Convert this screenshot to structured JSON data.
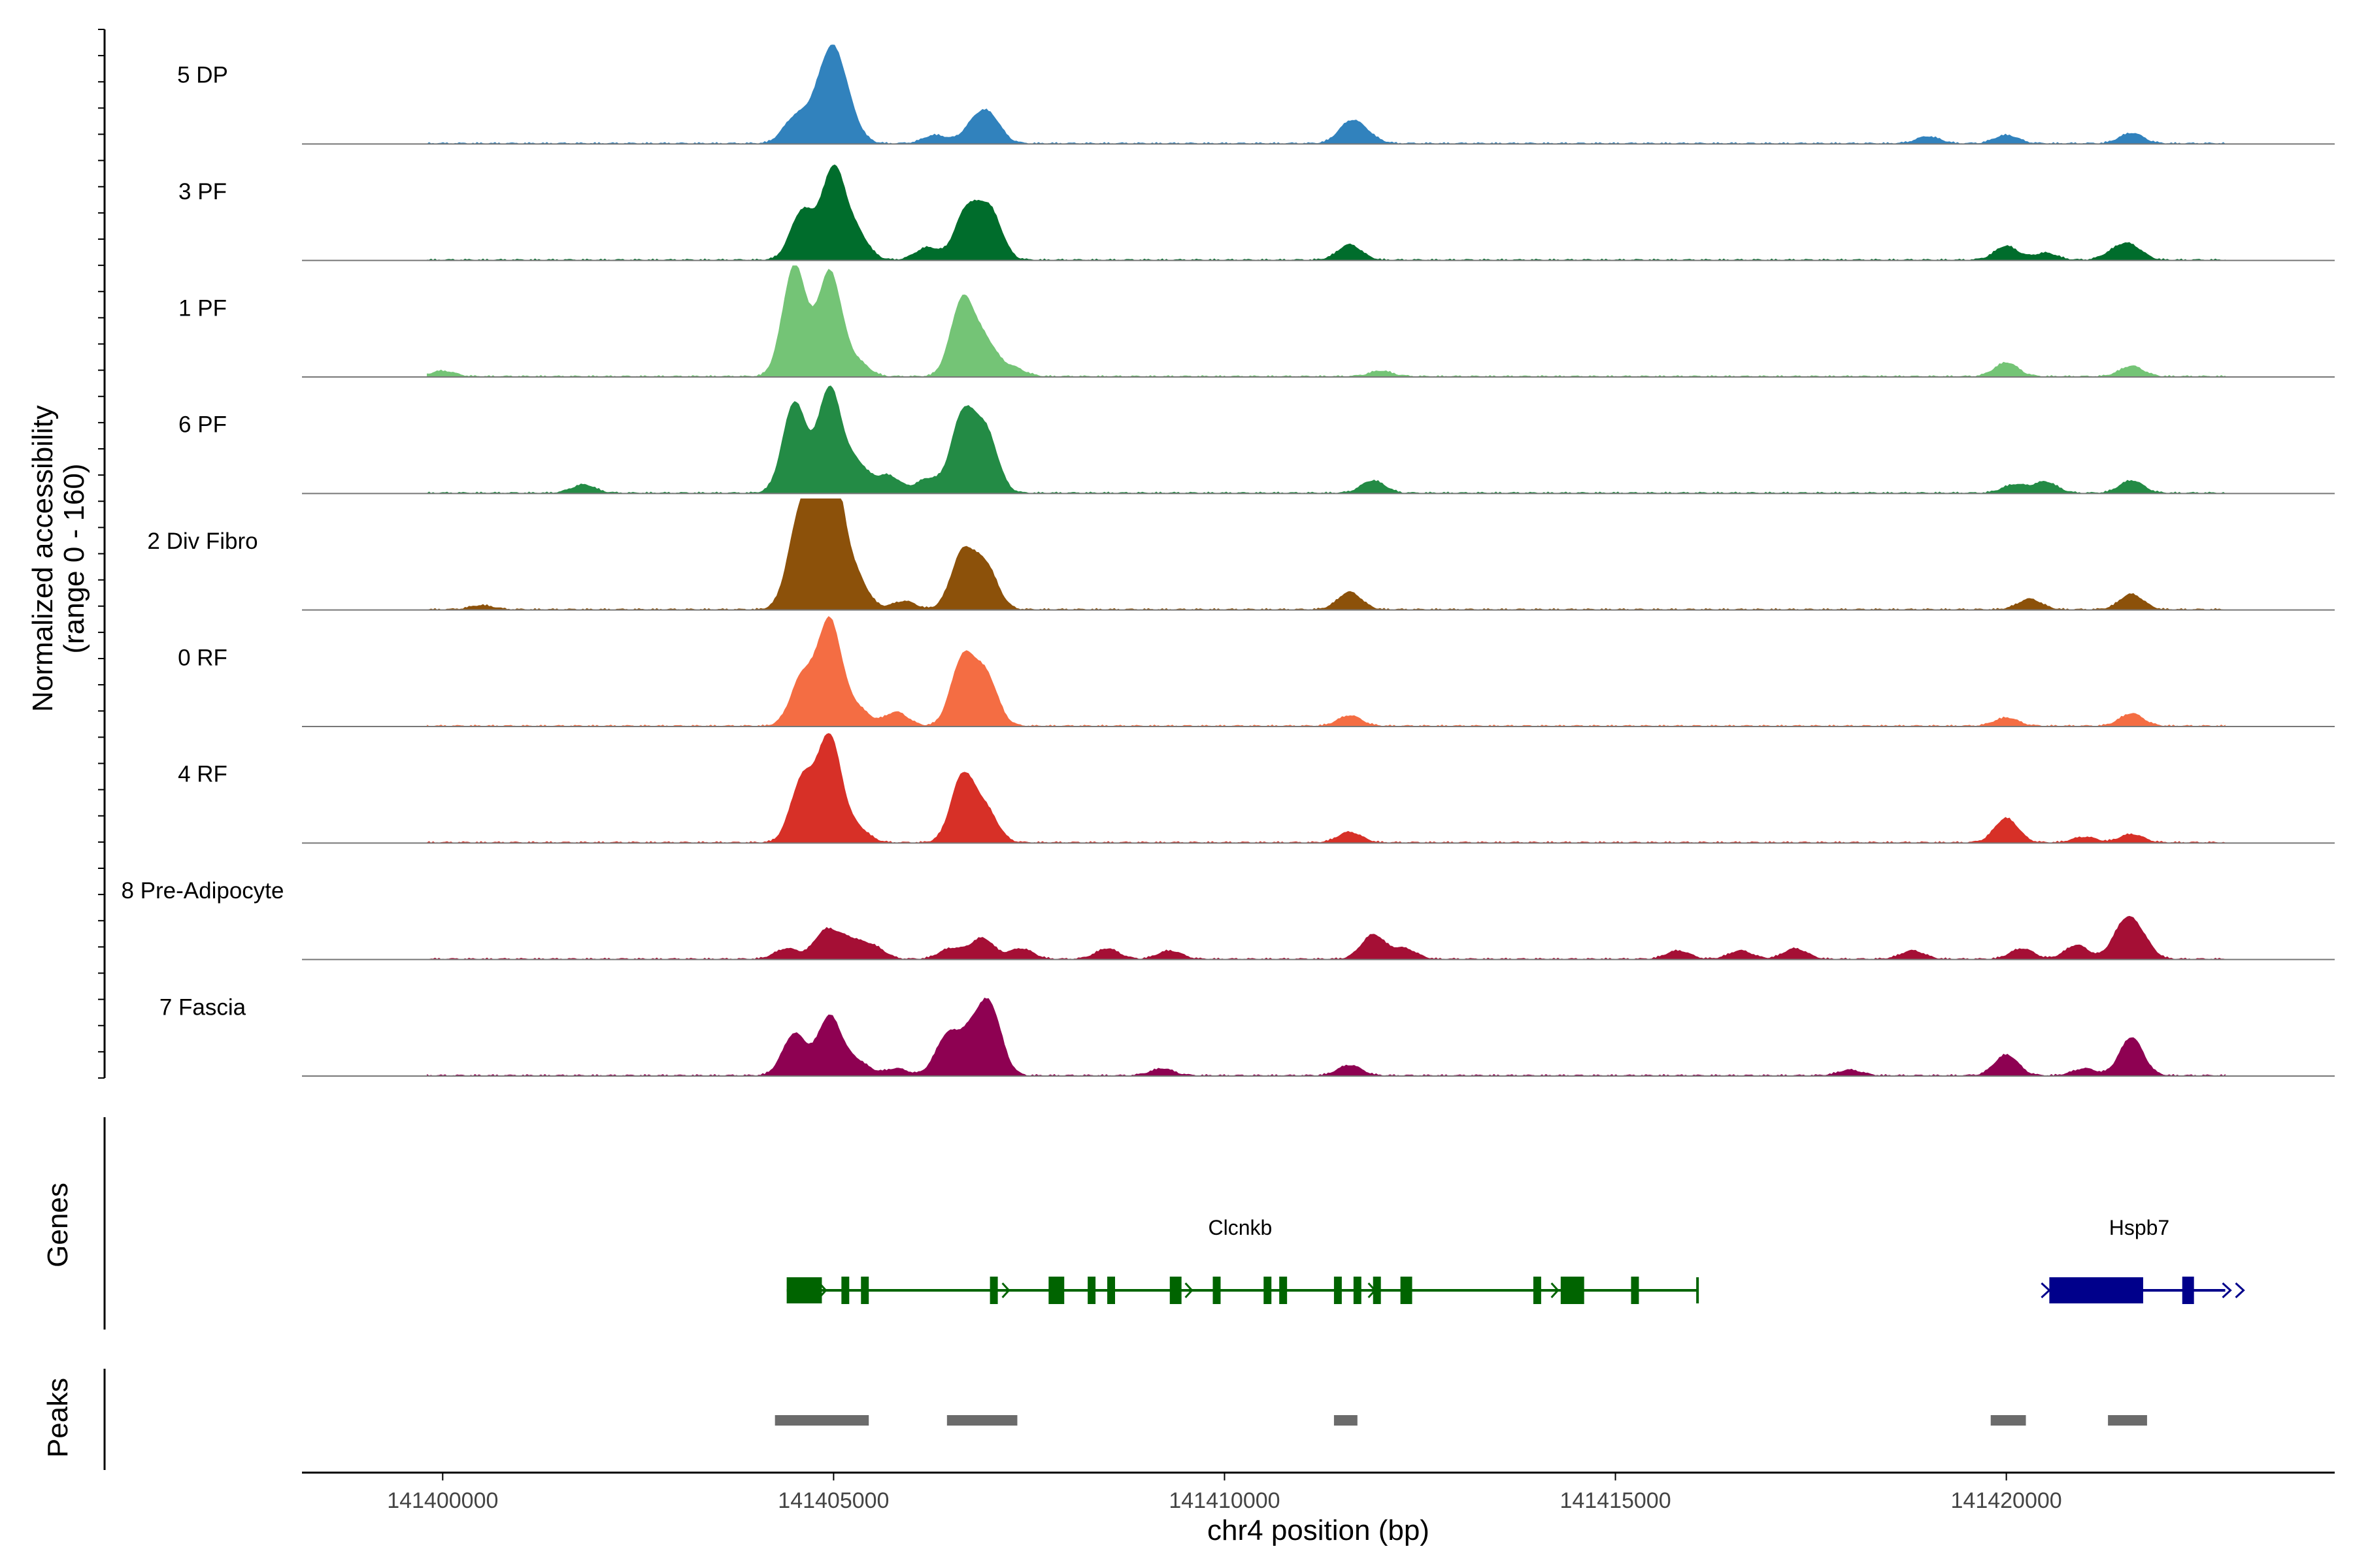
{
  "chart_data": {
    "type": "area",
    "title": "",
    "ylabel": "Normalized accessibility",
    "ylabel_range": "(range 0 - 160)",
    "xlabel": "chr4 position (bp)",
    "xlim": [
      141398200,
      141424200
    ],
    "ylim": [
      0,
      160
    ],
    "xticks": [
      141400000,
      141405000,
      141410000,
      141415000,
      141420000
    ],
    "tracks": [
      {
        "name": "5 DP",
        "color": "#3182bd",
        "peaks": [
          [
            141404800,
            45
          ],
          [
            141405000,
            110
          ],
          [
            141404500,
            35
          ],
          [
            141405200,
            30
          ],
          [
            141406800,
            25
          ],
          [
            141407000,
            35
          ],
          [
            141406300,
            12
          ],
          [
            141411600,
            28
          ],
          [
            141411800,
            12
          ],
          [
            141420000,
            12
          ],
          [
            141421600,
            15
          ],
          [
            141419000,
            10
          ]
        ]
      },
      {
        "name": "3 PF",
        "color": "#006d2c",
        "peaks": [
          [
            141404600,
            70
          ],
          [
            141405000,
            130
          ],
          [
            141405300,
            35
          ],
          [
            141406700,
            70
          ],
          [
            141407000,
            70
          ],
          [
            141406200,
            18
          ],
          [
            141411600,
            22
          ],
          [
            141420000,
            20
          ],
          [
            141421600,
            18
          ],
          [
            141420500,
            10
          ],
          [
            141421400,
            12
          ]
        ]
      },
      {
        "name": "1 PF",
        "color": "#74c476",
        "peaks": [
          [
            141404500,
            160
          ],
          [
            141404950,
            150
          ],
          [
            141405300,
            20
          ],
          [
            141406650,
            110
          ],
          [
            141406950,
            45
          ],
          [
            141407300,
            12
          ],
          [
            141420000,
            20
          ],
          [
            141421600,
            15
          ],
          [
            141400000,
            8
          ],
          [
            141412000,
            8
          ]
        ]
      },
      {
        "name": "6 PF",
        "color": "#238b45",
        "peaks": [
          [
            141404500,
            130
          ],
          [
            141404950,
            150
          ],
          [
            141405300,
            40
          ],
          [
            141406650,
            110
          ],
          [
            141406950,
            85
          ],
          [
            141405700,
            25
          ],
          [
            141406200,
            20
          ],
          [
            141401800,
            12
          ],
          [
            141411900,
            18
          ],
          [
            141420500,
            16
          ],
          [
            141421600,
            18
          ],
          [
            141420100,
            12
          ]
        ]
      },
      {
        "name": "2 Div Fibro",
        "color": "#8c510a",
        "peaks": [
          [
            141404550,
            110
          ],
          [
            141404800,
            150
          ],
          [
            141405000,
            160
          ],
          [
            141405300,
            40
          ],
          [
            141406650,
            80
          ],
          [
            141406950,
            60
          ],
          [
            141405900,
            12
          ],
          [
            141411600,
            25
          ],
          [
            141420300,
            15
          ],
          [
            141421600,
            22
          ],
          [
            141400500,
            6
          ]
        ]
      },
      {
        "name": "0 RF",
        "color": "#f46d43",
        "peaks": [
          [
            141404600,
            70
          ],
          [
            141404950,
            150
          ],
          [
            141405300,
            25
          ],
          [
            141405800,
            20
          ],
          [
            141406650,
            95
          ],
          [
            141406950,
            70
          ],
          [
            141411600,
            15
          ],
          [
            141420000,
            12
          ],
          [
            141421600,
            18
          ]
        ]
      },
      {
        "name": "4 RF",
        "color": "#d73027",
        "peaks": [
          [
            141404600,
            90
          ],
          [
            141404950,
            150
          ],
          [
            141405300,
            20
          ],
          [
            141406650,
            95
          ],
          [
            141406950,
            45
          ],
          [
            141411600,
            15
          ],
          [
            141420000,
            35
          ],
          [
            141421600,
            12
          ],
          [
            141421000,
            8
          ]
        ]
      },
      {
        "name": "8 Pre-Adipocyte",
        "color": "#a50f35",
        "peaks": [
          [
            141404400,
            15
          ],
          [
            141404900,
            40
          ],
          [
            141405200,
            25
          ],
          [
            141405500,
            18
          ],
          [
            141406500,
            15
          ],
          [
            141406900,
            30
          ],
          [
            141407400,
            15
          ],
          [
            141408500,
            15
          ],
          [
            141409300,
            12
          ],
          [
            141411900,
            35
          ],
          [
            141412300,
            15
          ],
          [
            141415800,
            12
          ],
          [
            141416600,
            12
          ],
          [
            141417300,
            15
          ],
          [
            141418800,
            12
          ],
          [
            141420200,
            15
          ],
          [
            141420900,
            20
          ],
          [
            141421500,
            45
          ],
          [
            141421700,
            30
          ]
        ]
      },
      {
        "name": "7 Fascia",
        "color": "#8e0152",
        "peaks": [
          [
            141404500,
            60
          ],
          [
            141404950,
            85
          ],
          [
            141405300,
            20
          ],
          [
            141406450,
            55
          ],
          [
            141406750,
            50
          ],
          [
            141407000,
            95
          ],
          [
            141405800,
            10
          ],
          [
            141409200,
            10
          ],
          [
            141411600,
            15
          ],
          [
            141420000,
            30
          ],
          [
            141421600,
            55
          ],
          [
            141421000,
            10
          ],
          [
            141418000,
            8
          ]
        ]
      }
    ],
    "genes": [
      {
        "name": "Clcnkb",
        "color": "#006400",
        "strand": "-",
        "start": 141404400,
        "end": 141416050,
        "exons": [
          [
            141404400,
            141404850
          ],
          [
            141405100,
            141405200
          ],
          [
            141405350,
            141405450
          ],
          [
            141407000,
            141407100
          ],
          [
            141407750,
            141407950
          ],
          [
            141408250,
            141408350
          ],
          [
            141408500,
            141408600
          ],
          [
            141409300,
            141409450
          ],
          [
            141409850,
            141409950
          ],
          [
            141410500,
            141410600
          ],
          [
            141410700,
            141410800
          ],
          [
            141411400,
            141411500
          ],
          [
            141411650,
            141411750
          ],
          [
            141411900,
            141412000
          ],
          [
            141412250,
            141412400
          ],
          [
            141413950,
            141414050
          ],
          [
            141414300,
            141414600
          ],
          [
            141415200,
            141415300
          ]
        ]
      },
      {
        "name": "Hspb7",
        "color": "#00008b",
        "strand": "+",
        "start": 141420550,
        "end": 141422800,
        "exons": [
          [
            141420550,
            141421750
          ],
          [
            141422250,
            141422400
          ]
        ]
      }
    ],
    "peak_regions": [
      [
        141404250,
        141405450
      ],
      [
        141406450,
        141407350
      ],
      [
        141411400,
        141411700
      ],
      [
        141419800,
        141420250
      ],
      [
        141421300,
        141421800
      ]
    ],
    "panel_labels": {
      "genes": "Genes",
      "peaks": "Peaks"
    }
  }
}
